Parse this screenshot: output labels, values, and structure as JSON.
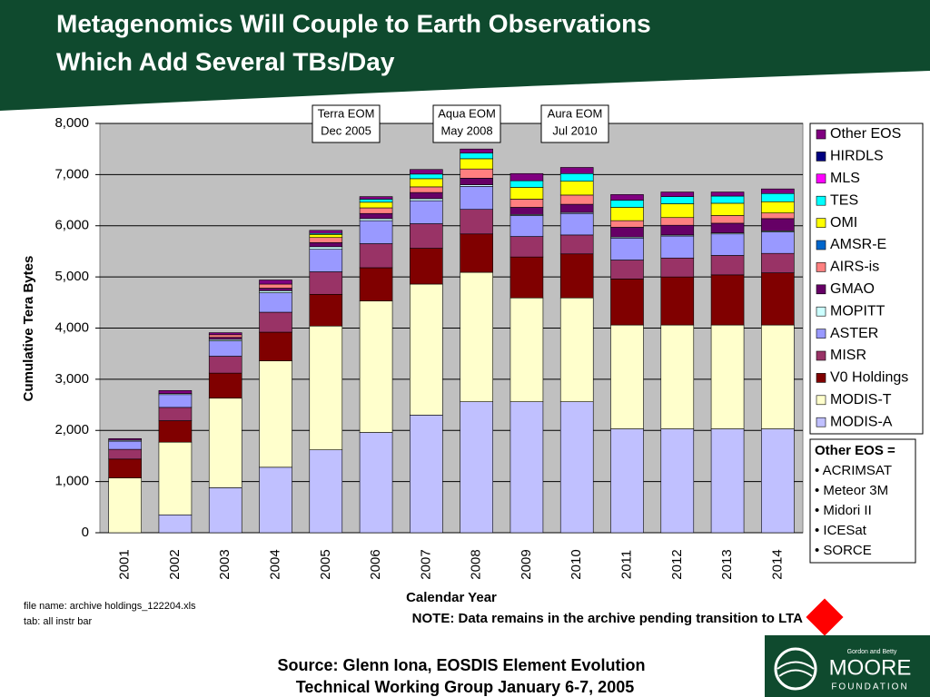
{
  "chart_data": {
    "type": "stacked_bar",
    "title": [
      "Metagenomics Will Couple to Earth Observations",
      "Which Add Several TBs/Day"
    ],
    "y_label": "Cumulative Tera Bytes",
    "x_label": "Calendar Year",
    "categories": [
      "2001",
      "2002",
      "2003",
      "2004",
      "2005",
      "2006",
      "2007",
      "2008",
      "2009",
      "2010",
      "2011",
      "2012",
      "2013",
      "2014"
    ],
    "ylim": [
      0,
      8000
    ],
    "yticks": [
      0,
      {
        "value": 1000,
        "label": "1,000"
      },
      {
        "value": 2000,
        "label": "2,000"
      },
      {
        "value": 3000,
        "label": "3,000"
      },
      {
        "value": 4000,
        "label": "4,000"
      },
      {
        "value": 5000,
        "label": "5,000"
      },
      {
        "value": 6000,
        "label": "6,000"
      },
      {
        "value": 7000,
        "label": "7,000"
      },
      {
        "value": 8000,
        "label": "8,000"
      }
    ],
    "grid": true,
    "series": [
      {
        "name": "MODIS-A",
        "color": "#c0c0ff",
        "values": [
          0,
          350,
          880,
          1280,
          1620,
          1960,
          2300,
          2560,
          2560,
          2560,
          2030,
          2030,
          2030,
          2030
        ]
      },
      {
        "name": "MODIS-T",
        "color": "#ffffcc",
        "values": [
          1070,
          1420,
          1750,
          2080,
          2420,
          2570,
          2560,
          2530,
          2030,
          2030,
          2030,
          2030,
          2030,
          2030
        ]
      },
      {
        "name": "V0 Holdings",
        "color": "#800000",
        "values": [
          370,
          420,
          490,
          560,
          620,
          650,
          700,
          750,
          800,
          860,
          900,
          940,
          980,
          1020
        ]
      },
      {
        "name": "MISR",
        "color": "#993366",
        "values": [
          190,
          260,
          330,
          390,
          440,
          470,
          480,
          480,
          400,
          370,
          370,
          370,
          380,
          380
        ]
      },
      {
        "name": "ASTER",
        "color": "#9999ff",
        "values": [
          160,
          250,
          300,
          380,
          440,
          450,
          450,
          450,
          410,
          420,
          430,
          430,
          420,
          420
        ]
      },
      {
        "name": "MOPITT",
        "color": "#ccffff",
        "values": [
          20,
          20,
          30,
          40,
          50,
          40,
          40,
          30,
          20,
          20,
          20,
          20,
          20,
          20
        ]
      },
      {
        "name": "GMAO",
        "color": "#660066",
        "values": [
          0,
          0,
          40,
          50,
          80,
          100,
          120,
          130,
          140,
          160,
          190,
          190,
          190,
          240
        ]
      },
      {
        "name": "AIRS-is",
        "color": "#ff8080",
        "values": [
          0,
          0,
          50,
          80,
          100,
          110,
          110,
          180,
          160,
          180,
          130,
          150,
          150,
          110
        ]
      },
      {
        "name": "AMSR-E",
        "color": "#0066cc",
        "values": [
          0,
          0,
          0,
          0,
          0,
          0,
          0,
          0,
          0,
          0,
          0,
          0,
          0,
          0
        ]
      },
      {
        "name": "OMI",
        "color": "#ffff00",
        "values": [
          0,
          0,
          0,
          0,
          60,
          110,
          160,
          200,
          230,
          270,
          260,
          270,
          240,
          220
        ]
      },
      {
        "name": "TES",
        "color": "#00ffff",
        "values": [
          0,
          0,
          0,
          0,
          20,
          60,
          90,
          110,
          130,
          150,
          140,
          140,
          140,
          160
        ]
      },
      {
        "name": "MLS",
        "color": "#ff00ff",
        "values": [
          0,
          0,
          0,
          0,
          0,
          0,
          0,
          0,
          0,
          0,
          0,
          0,
          0,
          0
        ]
      },
      {
        "name": "HIRDLS",
        "color": "#000080",
        "values": [
          0,
          0,
          0,
          0,
          0,
          0,
          0,
          0,
          0,
          0,
          0,
          0,
          0,
          0
        ]
      },
      {
        "name": "Other EOS",
        "color": "#800080",
        "values": [
          30,
          60,
          40,
          80,
          60,
          50,
          90,
          80,
          140,
          120,
          110,
          90,
          80,
          90
        ]
      }
    ],
    "annotations": [
      {
        "lines": [
          "Terra EOM",
          "Dec 2005"
        ]
      },
      {
        "lines": [
          "Aqua EOM",
          "May 2008"
        ]
      },
      {
        "lines": [
          "Aura EOM",
          "Jul 2010"
        ]
      }
    ],
    "other_eos_note": {
      "title": "Other EOS =",
      "items": [
        "• ACRIMSAT",
        "• Meteor 3M",
        "• Midori II",
        "• ICESat",
        "• SORCE"
      ]
    }
  },
  "slide": {
    "file_name": "file name: archive holdings_122204.xls",
    "tab": "tab: all instr bar",
    "note": "NOTE: Data remains in the archive pending transition to LTA",
    "source": [
      "Source: Glenn Iona, EOSDIS Element Evolution",
      "Technical Working Group January 6-7, 2005"
    ],
    "logo": {
      "small": "Gordon and Betty",
      "name": "MOORE",
      "sub": "FOUNDATION"
    }
  }
}
